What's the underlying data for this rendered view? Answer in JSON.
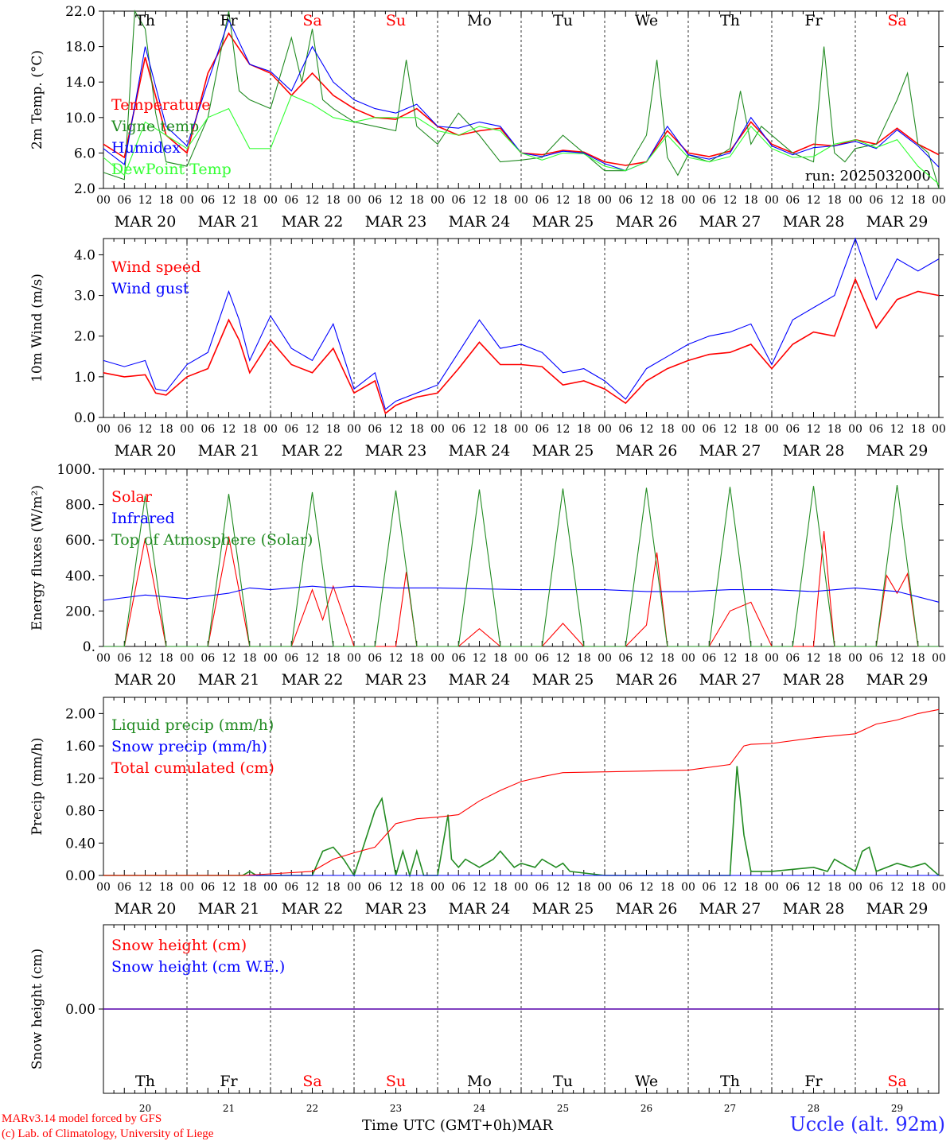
{
  "days": [
    "20",
    "21",
    "22",
    "23",
    "24",
    "25",
    "26",
    "27",
    "28",
    "29"
  ],
  "month_label": "MAR",
  "weekdays": [
    {
      "label": "Th",
      "color": "#000000"
    },
    {
      "label": "Fr",
      "color": "#000000"
    },
    {
      "label": "Sa",
      "color": "#ff0000"
    },
    {
      "label": "Su",
      "color": "#ff0000"
    },
    {
      "label": "Mo",
      "color": "#000000"
    },
    {
      "label": "Tu",
      "color": "#000000"
    },
    {
      "label": "We",
      "color": "#000000"
    },
    {
      "label": "Th",
      "color": "#000000"
    },
    {
      "label": "Fr",
      "color": "#000000"
    },
    {
      "label": "Sa",
      "color": "#ff0000"
    }
  ],
  "hour_ticks": [
    "00",
    "06",
    "12",
    "18"
  ],
  "footer": {
    "model_line1": "MARv3.14 model forced by GFS",
    "model_line2": "(c) Lab. of Climatology, University of Liege",
    "xlabel": "Time UTC (GMT+0h)",
    "station": "Uccle (alt. 92m)"
  },
  "chart_data": [
    {
      "type": "line",
      "ylabel": "2m Temp. (°C)",
      "ylim": [
        2.0,
        22.0
      ],
      "yticks": [
        "2.0",
        "6.0",
        "10.0",
        "14.0",
        "18.0",
        "22.0"
      ],
      "annotation": "run: 2025032000",
      "x_hours_from": "MAR 20 00 UTC",
      "series": [
        {
          "name": "Temperature",
          "color": "#ff0000",
          "x": [
            0,
            6,
            12,
            18,
            24,
            30,
            36,
            42,
            48,
            54,
            60,
            66,
            72,
            78,
            84,
            90,
            96,
            102,
            108,
            114,
            120,
            126,
            132,
            138,
            144,
            150,
            156,
            162,
            168,
            174,
            180,
            186,
            192,
            198,
            204,
            210,
            216,
            222,
            228,
            234,
            240
          ],
          "y": [
            7,
            5.5,
            16.8,
            8,
            6,
            15,
            19.5,
            16,
            15,
            12.5,
            15,
            12.5,
            11,
            10,
            9.8,
            11,
            9,
            8,
            8.5,
            8.8,
            6,
            5.8,
            6.3,
            6.1,
            5,
            4.6,
            5,
            8.5,
            6,
            5.6,
            6.2,
            9.5,
            7,
            6,
            7,
            6.8,
            7.5,
            7,
            8.8,
            7,
            5.8
          ]
        },
        {
          "name": "Vigne temp",
          "color": "#228b22",
          "x": [
            0,
            6,
            9,
            12,
            15,
            18,
            24,
            30,
            36,
            39,
            42,
            48,
            54,
            57,
            60,
            63,
            66,
            72,
            78,
            84,
            87,
            90,
            96,
            102,
            108,
            114,
            120,
            126,
            132,
            138,
            144,
            150,
            156,
            159,
            162,
            165,
            168,
            174,
            180,
            183,
            186,
            189,
            192,
            198,
            204,
            207,
            210,
            213,
            216,
            222,
            228,
            231,
            234,
            237,
            240
          ],
          "y": [
            3.8,
            3,
            22,
            20,
            10.5,
            5,
            4.5,
            10,
            22,
            13,
            12,
            11,
            19,
            14,
            20,
            12,
            11,
            9.5,
            9,
            8.5,
            16.5,
            9,
            7,
            10.5,
            8,
            5,
            5.2,
            5.5,
            8,
            6,
            4,
            4,
            8,
            16.5,
            5.5,
            3.5,
            5.8,
            5,
            6.5,
            13,
            7,
            9,
            8,
            6,
            5,
            18,
            6,
            5,
            6.5,
            7,
            12,
            15,
            7,
            6,
            2
          ]
        },
        {
          "name": "Humidex",
          "color": "#0000ff",
          "x": [
            0,
            6,
            12,
            18,
            24,
            30,
            36,
            42,
            48,
            54,
            60,
            66,
            72,
            78,
            84,
            90,
            96,
            102,
            108,
            114,
            120,
            126,
            132,
            138,
            144,
            150,
            156,
            162,
            168,
            174,
            180,
            186,
            192,
            198,
            204,
            210,
            216,
            222,
            228,
            234,
            240
          ],
          "y": [
            6.5,
            4.7,
            18,
            9,
            6.8,
            14,
            21,
            16,
            15.2,
            13,
            18,
            14,
            12,
            11,
            10.5,
            11.5,
            9,
            8.8,
            9.5,
            9,
            6,
            5.6,
            6.2,
            6,
            4.8,
            4,
            5,
            9,
            5.8,
            5.3,
            6,
            10,
            6.8,
            5.8,
            6.6,
            6.8,
            7.3,
            6.5,
            8.6,
            6.8,
            4.4
          ]
        },
        {
          "name": "DewPoint Temp",
          "color": "#33ff33",
          "x": [
            0,
            6,
            12,
            18,
            24,
            30,
            36,
            42,
            48,
            54,
            60,
            66,
            72,
            78,
            84,
            90,
            96,
            102,
            108,
            114,
            120,
            126,
            132,
            138,
            144,
            150,
            156,
            162,
            168,
            174,
            180,
            186,
            192,
            198,
            204,
            210,
            216,
            222,
            228,
            234,
            240
          ],
          "y": [
            5.5,
            3.5,
            9.5,
            8,
            6.5,
            10,
            11,
            6.5,
            6.5,
            12.5,
            11.5,
            10,
            9.5,
            10,
            10,
            10,
            8.5,
            8,
            9,
            8.5,
            6,
            5.2,
            6,
            5.9,
            4.5,
            4,
            5,
            8,
            5.5,
            5,
            5.6,
            9,
            6.5,
            5.5,
            5.6,
            7,
            7.5,
            6.6,
            7.5,
            4.5,
            2.5
          ]
        }
      ]
    },
    {
      "type": "line",
      "ylabel": "10m Wind (m/s)",
      "ylim": [
        0.0,
        4.4
      ],
      "yticks": [
        "0.0",
        "1.0",
        "2.0",
        "3.0",
        "4.0"
      ],
      "series": [
        {
          "name": "Wind speed",
          "color": "#ff0000",
          "x": [
            0,
            6,
            12,
            15,
            18,
            24,
            30,
            36,
            39,
            42,
            48,
            54,
            60,
            66,
            72,
            78,
            81,
            84,
            87,
            90,
            96,
            102,
            108,
            114,
            120,
            126,
            132,
            138,
            144,
            150,
            156,
            162,
            168,
            174,
            180,
            186,
            192,
            198,
            204,
            210,
            216,
            222,
            228,
            234,
            240
          ],
          "y": [
            1.1,
            1,
            1.05,
            0.6,
            0.55,
            1,
            1.2,
            2.4,
            1.9,
            1.1,
            1.9,
            1.3,
            1.1,
            1.7,
            0.6,
            0.9,
            0.1,
            0.3,
            0.4,
            0.5,
            0.6,
            1.2,
            1.85,
            1.3,
            1.3,
            1.25,
            0.8,
            0.9,
            0.7,
            0.35,
            0.9,
            1.2,
            1.4,
            1.55,
            1.6,
            1.8,
            1.2,
            1.8,
            2.1,
            2.0,
            3.4,
            2.2,
            2.9,
            3.1,
            3.0
          ]
        },
        {
          "name": "Wind gust",
          "color": "#0000ff",
          "x": [
            0,
            6,
            12,
            15,
            18,
            24,
            30,
            36,
            39,
            42,
            48,
            54,
            60,
            66,
            72,
            78,
            81,
            84,
            87,
            90,
            96,
            102,
            108,
            114,
            120,
            126,
            132,
            138,
            144,
            150,
            156,
            162,
            168,
            174,
            180,
            186,
            192,
            198,
            204,
            210,
            216,
            222,
            228,
            234,
            240
          ],
          "y": [
            1.4,
            1.25,
            1.4,
            0.7,
            0.65,
            1.3,
            1.6,
            3.1,
            2.4,
            1.4,
            2.5,
            1.7,
            1.4,
            2.3,
            0.7,
            1.1,
            0.2,
            0.4,
            0.5,
            0.6,
            0.8,
            1.6,
            2.4,
            1.7,
            1.8,
            1.6,
            1.1,
            1.2,
            0.9,
            0.45,
            1.2,
            1.5,
            1.8,
            2.0,
            2.1,
            2.3,
            1.3,
            2.4,
            2.7,
            3.0,
            4.4,
            2.9,
            3.9,
            3.6,
            3.9
          ]
        }
      ]
    },
    {
      "type": "line",
      "ylabel": "Energy fluxes (W/m²)",
      "ylim": [
        0,
        1000
      ],
      "yticks": [
        "0.",
        "200.",
        "400.",
        "600.",
        "800.",
        "1000."
      ],
      "series": [
        {
          "name": "Solar",
          "color": "#ff0000",
          "x": [
            0,
            6,
            12,
            18,
            24,
            30,
            36,
            42,
            48,
            54,
            60,
            63,
            66,
            72,
            78,
            84,
            87,
            90,
            96,
            102,
            108,
            114,
            120,
            126,
            132,
            138,
            144,
            150,
            156,
            159,
            162,
            168,
            174,
            180,
            186,
            192,
            198,
            204,
            207,
            210,
            216,
            222,
            225,
            228,
            231,
            234,
            240
          ],
          "y": [
            0,
            0,
            610,
            0,
            0,
            0,
            620,
            0,
            0,
            0,
            320,
            150,
            340,
            0,
            0,
            0,
            420,
            0,
            0,
            0,
            100,
            0,
            0,
            0,
            130,
            0,
            0,
            0,
            120,
            530,
            0,
            0,
            0,
            200,
            250,
            0,
            0,
            0,
            650,
            0,
            0,
            0,
            400,
            300,
            410,
            0,
            0
          ]
        },
        {
          "name": "Infrared",
          "color": "#0000ff",
          "x": [
            0,
            12,
            24,
            36,
            42,
            48,
            60,
            66,
            72,
            84,
            96,
            120,
            144,
            156,
            168,
            180,
            192,
            204,
            216,
            228,
            240
          ],
          "y": [
            260,
            290,
            270,
            300,
            330,
            320,
            340,
            330,
            340,
            330,
            330,
            320,
            320,
            310,
            310,
            320,
            320,
            310,
            330,
            310,
            250
          ]
        },
        {
          "name": "Top of Atmosphere (Solar)",
          "color": "#228b22",
          "x": [
            0,
            6,
            12,
            18,
            24,
            30,
            36,
            42,
            48,
            54,
            60,
            66,
            72,
            78,
            84,
            90,
            96,
            102,
            108,
            114,
            120,
            126,
            132,
            138,
            144,
            150,
            156,
            162,
            168,
            174,
            180,
            186,
            192,
            198,
            204,
            210,
            216,
            222,
            228,
            234,
            240
          ],
          "y": [
            0,
            0,
            850,
            0,
            0,
            0,
            860,
            0,
            0,
            0,
            870,
            0,
            0,
            0,
            880,
            0,
            0,
            0,
            885,
            0,
            0,
            0,
            890,
            0,
            0,
            0,
            895,
            0,
            0,
            0,
            900,
            0,
            0,
            0,
            905,
            0,
            0,
            0,
            910,
            0,
            0
          ]
        }
      ]
    },
    {
      "type": "line",
      "ylabel": "Precip (mm/h)",
      "ylim": [
        0.0,
        2.2
      ],
      "yticks": [
        "0.00",
        "0.40",
        "0.80",
        "1.20",
        "1.60",
        "2.00"
      ],
      "series": [
        {
          "name": "Liquid precip (mm/h)",
          "color": "#228b22",
          "x": [
            0,
            40,
            42,
            44,
            60,
            63,
            66,
            69,
            72,
            78,
            80,
            84,
            86,
            88,
            90,
            92,
            96,
            99,
            100,
            102,
            104,
            108,
            112,
            114,
            118,
            120,
            124,
            126,
            130,
            132,
            134,
            144,
            168,
            180,
            182,
            184,
            186,
            192,
            204,
            208,
            210,
            216,
            218,
            220,
            222,
            228,
            232,
            236,
            240
          ],
          "y": [
            0,
            0,
            0.05,
            0,
            0,
            0.3,
            0.35,
            0.2,
            0,
            0.8,
            0.95,
            0,
            0.3,
            0,
            0.3,
            0,
            0,
            0.75,
            0.2,
            0.1,
            0.2,
            0.1,
            0.2,
            0.3,
            0.1,
            0.15,
            0.1,
            0.2,
            0.1,
            0.15,
            0.05,
            0,
            0,
            0,
            1.35,
            0.5,
            0.05,
            0.05,
            0.1,
            0.05,
            0.2,
            0.05,
            0.3,
            0.35,
            0.05,
            0.15,
            0.1,
            0.15,
            0
          ]
        },
        {
          "name": "Snow precip (mm/h)",
          "color": "#0000ff",
          "x": [
            0,
            240
          ],
          "y": [
            0,
            0
          ]
        },
        {
          "name": "Total cumulated (cm)",
          "color": "#ff0000",
          "x": [
            0,
            40,
            48,
            60,
            66,
            72,
            78,
            84,
            90,
            96,
            102,
            108,
            114,
            120,
            126,
            132,
            144,
            156,
            168,
            180,
            184,
            186,
            192,
            204,
            216,
            222,
            228,
            234,
            240
          ],
          "y": [
            0,
            0,
            0.02,
            0.05,
            0.2,
            0.28,
            0.35,
            0.64,
            0.7,
            0.72,
            0.75,
            0.92,
            1.05,
            1.16,
            1.22,
            1.27,
            1.28,
            1.29,
            1.3,
            1.37,
            1.6,
            1.62,
            1.63,
            1.7,
            1.75,
            1.87,
            1.92,
            2.0,
            2.05
          ]
        }
      ]
    },
    {
      "type": "line",
      "ylabel": "Snow height (cm)",
      "ylim": [
        -1,
        1
      ],
      "yticks": [
        "0.00"
      ],
      "series": [
        {
          "name": "Snow height (cm)",
          "color": "#ff0000",
          "x": [
            0,
            240
          ],
          "y": [
            0,
            0
          ]
        },
        {
          "name": "Snow height (cm W.E.)",
          "color": "#0000ff",
          "x": [
            0,
            240
          ],
          "y": [
            0,
            0
          ]
        }
      ]
    }
  ]
}
